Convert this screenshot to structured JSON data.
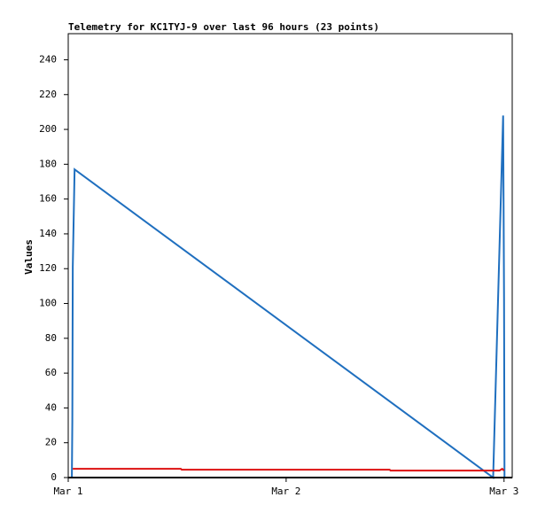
{
  "chart_data": {
    "type": "line",
    "title": "Telemetry for KC1TYJ-9 over last 96 hours (23 points)",
    "ylabel": "Values",
    "x": [
      0.4,
      0.45,
      0.5,
      0.7,
      46.8,
      47.9,
      48.0
    ],
    "series": [
      {
        "name": null,
        "color": "#1f6fbf",
        "x": [
          0.4,
          0.45,
          0.5,
          0.7,
          46.8,
          47.9,
          48.0,
          48.05
        ],
        "values": [
          0,
          32,
          121,
          177,
          0,
          208,
          104,
          0
        ]
      },
      {
        "name": null,
        "color": "#dd1111",
        "x": [
          0.5,
          12.4,
          12.5,
          35.4,
          35.5,
          47.5,
          47.8,
          48.0
        ],
        "values": [
          5,
          5,
          4.5,
          4.5,
          4,
          4,
          5,
          4
        ]
      }
    ],
    "xlim": [
      0,
      48.9
    ],
    "xticks": [
      {
        "value": 0,
        "label": "Mar 1"
      },
      {
        "value": 24,
        "label": "Mar 2"
      },
      {
        "value": 48,
        "label": "Mar 3"
      }
    ],
    "ylim": [
      0,
      255
    ],
    "yticks": [
      0,
      20,
      40,
      60,
      80,
      100,
      120,
      140,
      160,
      180,
      200,
      220,
      240
    ],
    "grid": false
  }
}
